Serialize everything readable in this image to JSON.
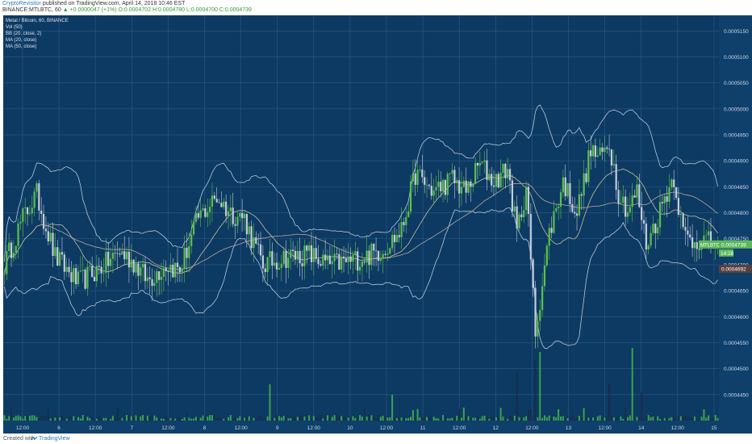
{
  "header": {
    "author": "CryptoRevisitor",
    "published": "published on TradingView.com, April 14, 2018 10:46 EST",
    "symbol_line_prefix": "BINANCE:MTLBTC, 60",
    "change": "▲ +0.0000047 (+1%)",
    "ohlc": "O:0.0004702 H:0.0004780 L:0.0004700 C:0.0004739"
  },
  "footer": {
    "created": "Created with",
    "brand": "TradingView"
  },
  "colors": {
    "background": "#0d3a63",
    "up": "#5cc04a",
    "down": "#c4ccd8",
    "band": "#b9c6d8",
    "ma20": "#c8c09a",
    "ma50": "#b8a898",
    "volume_up": "#3fae49",
    "volume_down": "#172e48",
    "last_price_tag": "#5cb85c",
    "low_tag": "#5a3f3f"
  },
  "chart_data": {
    "type": "candlestick",
    "legend": [
      "Metal / Bitcoin, 60, BINANCE",
      "Vol (50)",
      "BB (20, close, 2)",
      "MA (20, close)",
      "MA (50, close)"
    ],
    "legend_placement": "top-left",
    "grid": true,
    "ylim": [
      0.00044,
      0.000518
    ],
    "y_ticks": [
      "0.0005150",
      "0.0005100",
      "0.0005050",
      "0.0005000",
      "0.0004950",
      "0.0004900",
      "0.0004850",
      "0.0004800",
      "0.0004750",
      "0.0004700",
      "0.0004650",
      "0.0004600",
      "0.0004550",
      "0.0004500",
      "0.0004450"
    ],
    "x_ticks": [
      "12:00",
      "6",
      "12:00",
      "7",
      "12:00",
      "8",
      "12:00",
      "9",
      "12:00",
      "10",
      "12:00",
      "11",
      "12:00",
      "12",
      "12:00",
      "13",
      "12:00",
      "14",
      "12:00",
      "15"
    ],
    "price_tags": [
      {
        "label": "MTLBTC",
        "value": "0.0004739"
      },
      {
        "label": "",
        "value": "14:28"
      },
      {
        "label": "",
        "value": "0.0004692"
      }
    ],
    "anchors": [
      [
        0,
        0.00047
      ],
      [
        8,
        0.000479
      ],
      [
        14,
        0.0004835
      ],
      [
        22,
        0.0004715
      ],
      [
        32,
        0.0004665
      ],
      [
        42,
        0.0004695
      ],
      [
        50,
        0.0004725
      ],
      [
        56,
        0.0004705
      ],
      [
        62,
        0.000467
      ],
      [
        70,
        0.00047
      ],
      [
        76,
        0.000469
      ],
      [
        84,
        0.000479
      ],
      [
        92,
        0.000483
      ],
      [
        98,
        0.00048
      ],
      [
        104,
        0.000479
      ],
      [
        108,
        0.000474
      ],
      [
        112,
        0.00047
      ],
      [
        122,
        0.0004715
      ],
      [
        132,
        0.000472
      ],
      [
        140,
        0.00047
      ],
      [
        148,
        0.0004705
      ],
      [
        156,
        0.0004715
      ],
      [
        164,
        0.000473
      ],
      [
        172,
        0.0004765
      ],
      [
        178,
        0.0004875
      ],
      [
        186,
        0.000484
      ],
      [
        194,
        0.0004865
      ],
      [
        200,
        0.000484
      ],
      [
        206,
        0.0004895
      ],
      [
        212,
        0.000486
      ],
      [
        218,
        0.0004885
      ],
      [
        222,
        0.000476
      ],
      [
        226,
        0.000485
      ],
      [
        230,
        0.000457
      ],
      [
        236,
        0.000476
      ],
      [
        242,
        0.000486
      ],
      [
        248,
        0.00048
      ],
      [
        254,
        0.000492
      ],
      [
        258,
        0.0004905
      ],
      [
        262,
        0.0004935
      ],
      [
        266,
        0.000484
      ],
      [
        270,
        0.0004805
      ],
      [
        274,
        0.000484
      ],
      [
        278,
        0.000474
      ],
      [
        282,
        0.000478
      ],
      [
        286,
        0.000483
      ],
      [
        290,
        0.000487
      ],
      [
        294,
        0.000476
      ],
      [
        298,
        0.0004745
      ],
      [
        302,
        0.000475
      ],
      [
        306,
        0.000474
      ],
      [
        308,
        0.0004739
      ]
    ],
    "volume_spikes": [
      [
        115,
        0.45
      ],
      [
        168,
        0.32
      ],
      [
        222,
        0.6
      ],
      [
        230,
        0.75
      ],
      [
        232,
        0.85
      ],
      [
        262,
        0.45
      ],
      [
        272,
        0.9
      ],
      [
        276,
        0.35
      ]
    ]
  }
}
